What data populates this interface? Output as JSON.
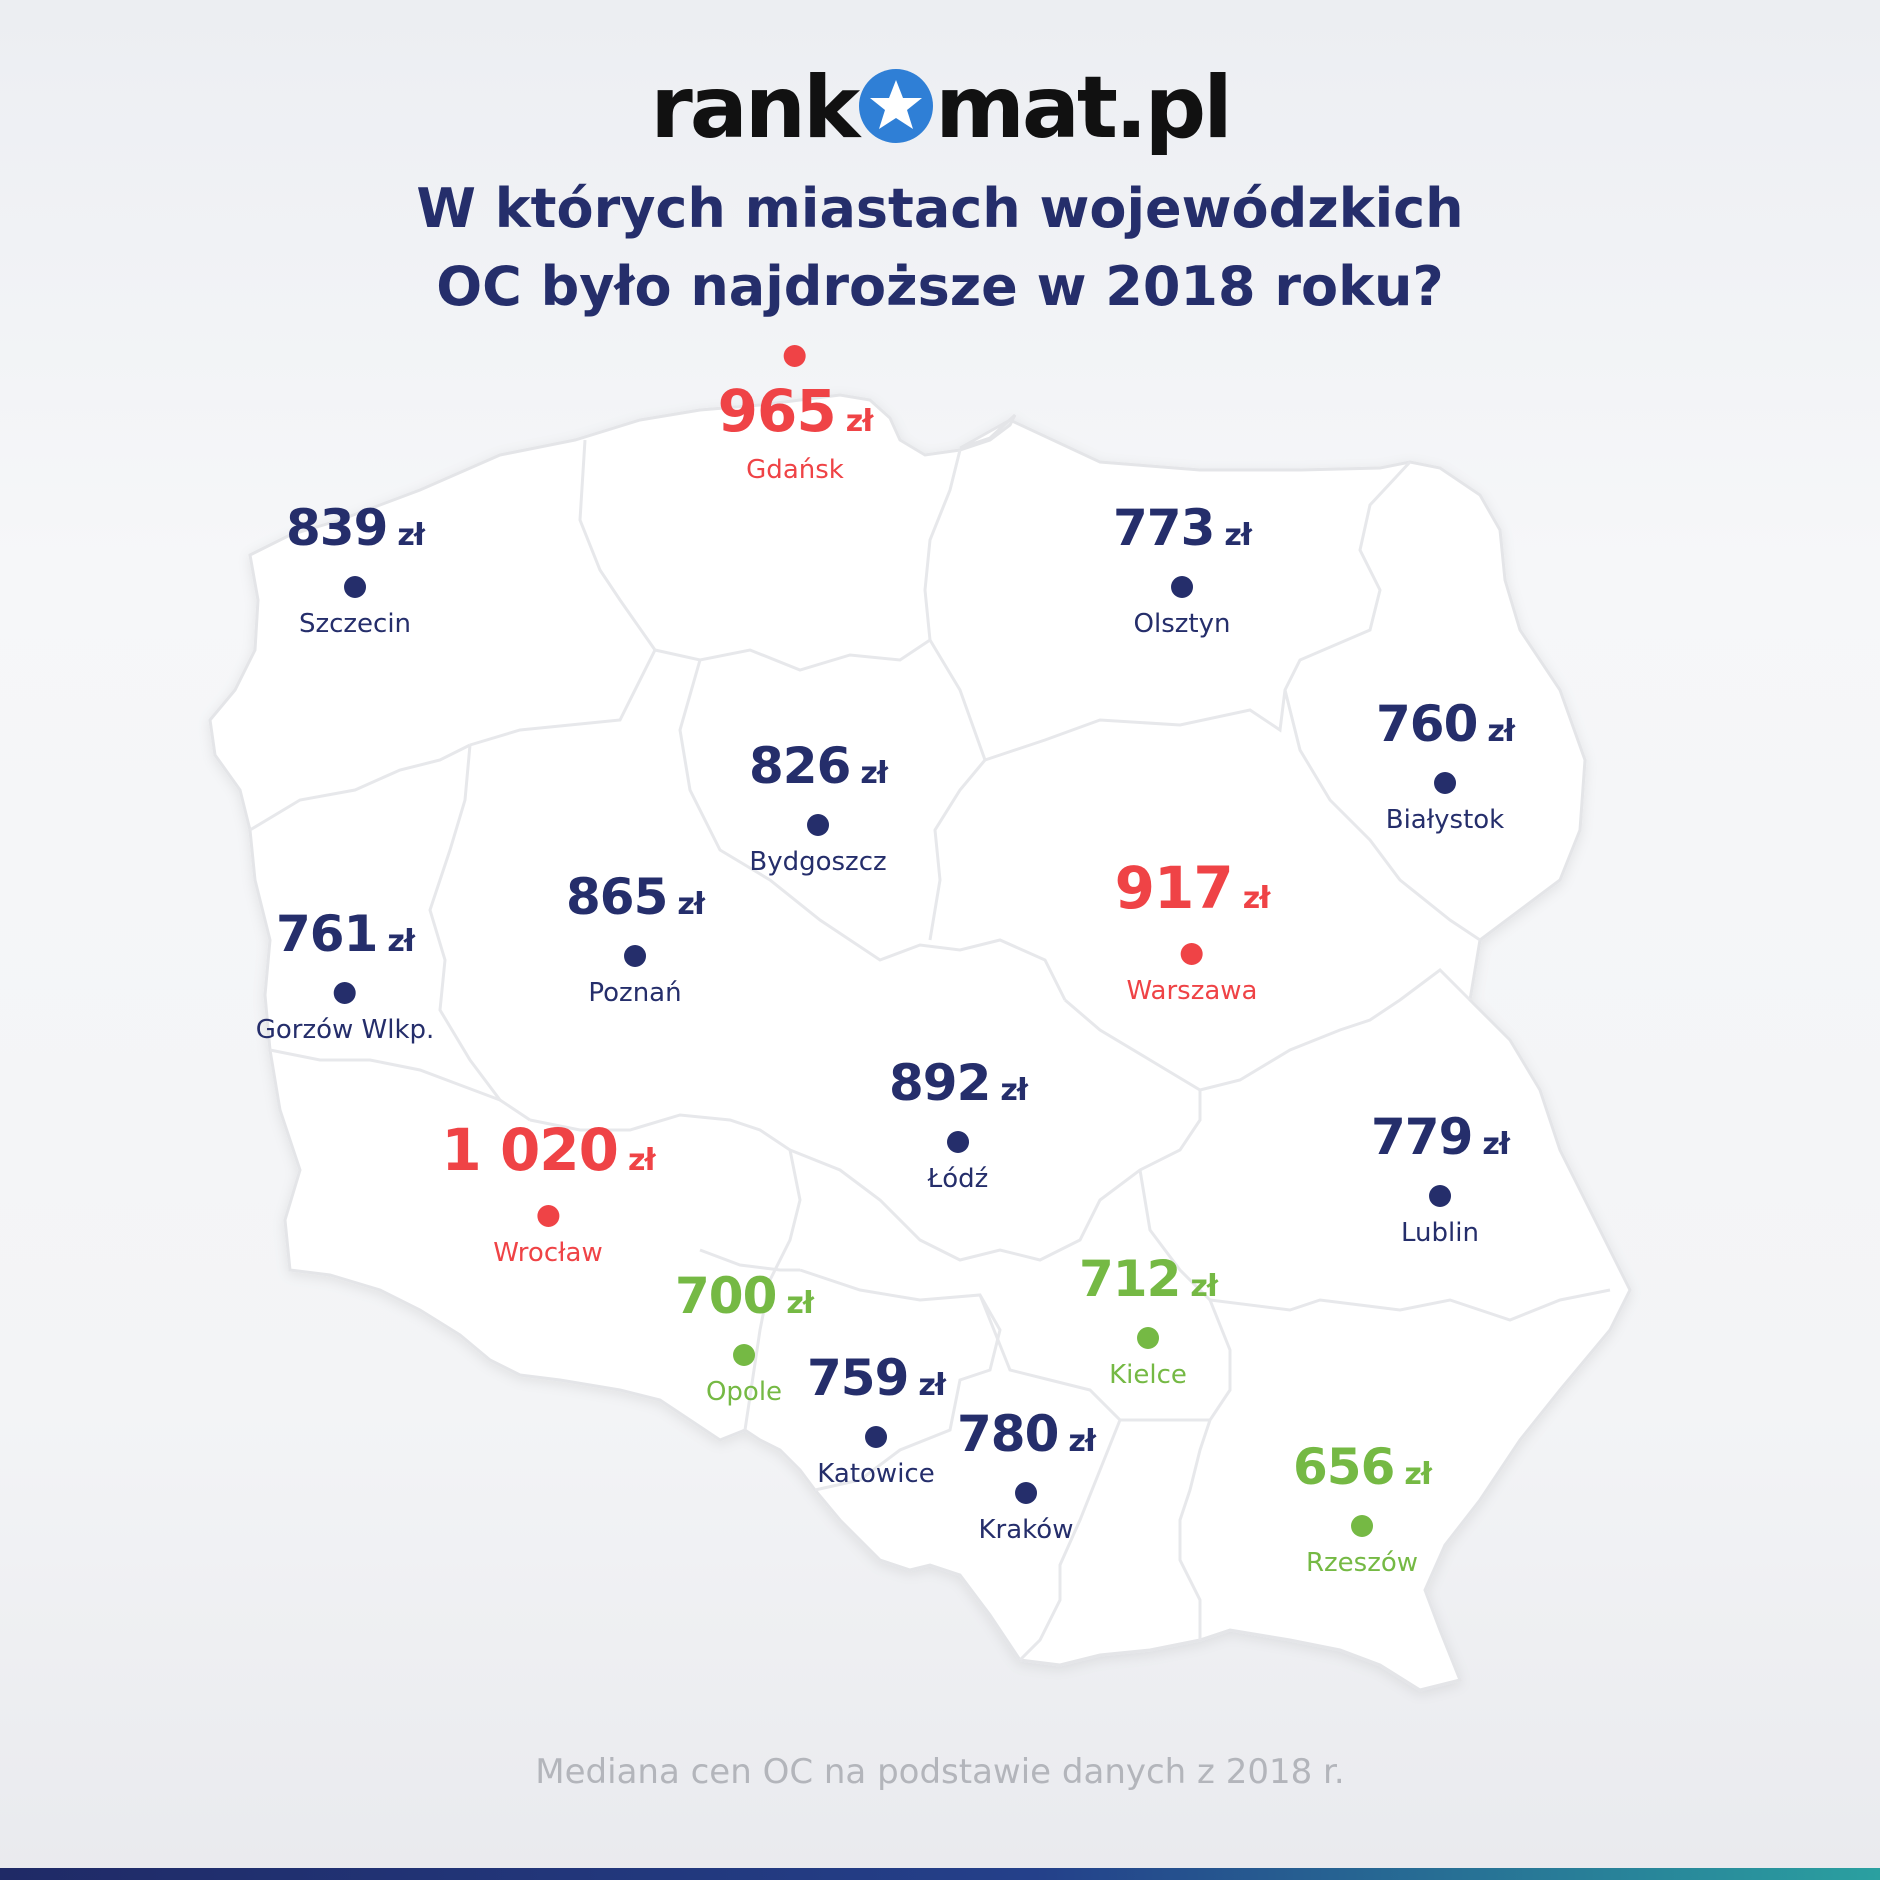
{
  "logo": {
    "left": "rank",
    "right": "mat.pl"
  },
  "title": {
    "line1": "W których miastach wojewódzkich",
    "line2": "OC było najdroższe w 2018 roku?"
  },
  "unit": "zł",
  "colors": {
    "navy": "#252e6b",
    "red": "#ef4346",
    "green": "#75b944",
    "star": "#2f7fd6"
  },
  "cities": [
    {
      "id": "gdansk",
      "name": "Gdańsk",
      "price": "965",
      "color": "red",
      "dot_position": "above"
    },
    {
      "id": "szczecin",
      "name": "Szczecin",
      "price": "839",
      "color": "navy"
    },
    {
      "id": "olsztyn",
      "name": "Olsztyn",
      "price": "773",
      "color": "navy"
    },
    {
      "id": "bialystok",
      "name": "Białystok",
      "price": "760",
      "color": "navy"
    },
    {
      "id": "bydgoszcz",
      "name": "Bydgoszcz",
      "price": "826",
      "color": "navy"
    },
    {
      "id": "poznan",
      "name": "Poznań",
      "price": "865",
      "color": "navy"
    },
    {
      "id": "warszawa",
      "name": "Warszawa",
      "price": "917",
      "color": "red"
    },
    {
      "id": "gorzow",
      "name": "Gorzów Wlkp.",
      "price": "761",
      "color": "navy"
    },
    {
      "id": "lodz",
      "name": "Łódź",
      "price": "892",
      "color": "navy"
    },
    {
      "id": "wroclaw",
      "name": "Wrocław",
      "price": "1 020",
      "color": "red"
    },
    {
      "id": "lublin",
      "name": "Lublin",
      "price": "779",
      "color": "navy"
    },
    {
      "id": "opole",
      "name": "Opole",
      "price": "700",
      "color": "green"
    },
    {
      "id": "kielce",
      "name": "Kielce",
      "price": "712",
      "color": "green"
    },
    {
      "id": "katowice",
      "name": "Katowice",
      "price": "759",
      "color": "navy"
    },
    {
      "id": "krakow",
      "name": "Kraków",
      "price": "780",
      "color": "navy"
    },
    {
      "id": "rzeszow",
      "name": "Rzeszów",
      "price": "656",
      "color": "green"
    }
  ],
  "footnote": "Mediana cen OC na podstawie danych z 2018 r."
}
